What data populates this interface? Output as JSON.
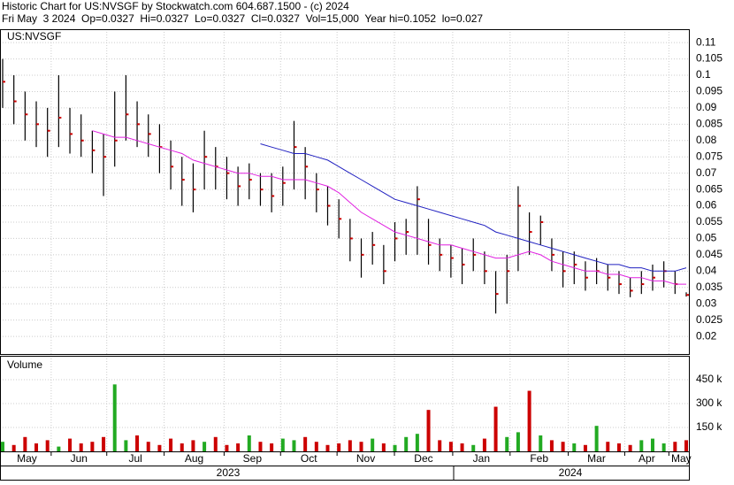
{
  "header": {
    "line1": "Historic Chart for US:NVSGF by Stockwatch.com 604.687.1500 - (c) 2024",
    "line2": "Fri May  3 2024  Op=0.0327  Hi=0.0327  Lo=0.0327  Cl=0.0327  Vol=15,000  Year hi=0.1052  lo=0.027"
  },
  "chart_data": [
    {
      "type": "ohlc",
      "label": "US:NVSGF",
      "bar_color": "#000000",
      "close_color": "#cc0000",
      "grid": true,
      "high": [
        0.105,
        0.1,
        0.095,
        0.092,
        0.09,
        0.1,
        0.09,
        0.088,
        0.083,
        0.082,
        0.095,
        0.1,
        0.092,
        0.088,
        0.085,
        0.08,
        0.075,
        0.073,
        0.083,
        0.078,
        0.075,
        0.072,
        0.073,
        0.07,
        0.07,
        0.072,
        0.086,
        0.078,
        0.07,
        0.066,
        0.062,
        0.056,
        0.05,
        0.052,
        0.048,
        0.055,
        0.056,
        0.066,
        0.056,
        0.05,
        0.048,
        0.047,
        0.05,
        0.046,
        0.04,
        0.045,
        0.066,
        0.058,
        0.057,
        0.05,
        0.046,
        0.046,
        0.043,
        0.044,
        0.042,
        0.04,
        0.038,
        0.04,
        0.042,
        0.043,
        0.04,
        0.0335
      ],
      "low": [
        0.09,
        0.085,
        0.08,
        0.078,
        0.075,
        0.078,
        0.076,
        0.075,
        0.07,
        0.063,
        0.072,
        0.08,
        0.078,
        0.075,
        0.07,
        0.065,
        0.06,
        0.058,
        0.065,
        0.065,
        0.062,
        0.06,
        0.062,
        0.06,
        0.058,
        0.06,
        0.065,
        0.062,
        0.058,
        0.054,
        0.05,
        0.043,
        0.038,
        0.042,
        0.036,
        0.043,
        0.045,
        0.045,
        0.042,
        0.04,
        0.038,
        0.036,
        0.04,
        0.036,
        0.027,
        0.03,
        0.04,
        0.045,
        0.048,
        0.04,
        0.035,
        0.036,
        0.034,
        0.036,
        0.034,
        0.033,
        0.032,
        0.033,
        0.034,
        0.035,
        0.033,
        0.0322
      ],
      "close": [
        0.098,
        0.092,
        0.088,
        0.085,
        0.083,
        0.087,
        0.082,
        0.08,
        0.077,
        0.075,
        0.08,
        0.088,
        0.085,
        0.082,
        0.078,
        0.072,
        0.068,
        0.065,
        0.075,
        0.072,
        0.07,
        0.066,
        0.068,
        0.065,
        0.063,
        0.067,
        0.078,
        0.072,
        0.065,
        0.06,
        0.056,
        0.05,
        0.045,
        0.048,
        0.04,
        0.05,
        0.052,
        0.062,
        0.048,
        0.045,
        0.044,
        0.042,
        0.045,
        0.04,
        0.033,
        0.04,
        0.06,
        0.052,
        0.055,
        0.045,
        0.04,
        0.042,
        0.038,
        0.04,
        0.038,
        0.036,
        0.034,
        0.036,
        0.038,
        0.04,
        0.036,
        0.0327
      ],
      "series": [
        {
          "color": "#e020e0",
          "values": [
            null,
            null,
            null,
            null,
            null,
            null,
            null,
            null,
            0.083,
            0.082,
            0.081,
            0.081,
            0.08,
            0.079,
            0.078,
            0.077,
            0.076,
            0.074,
            0.073,
            0.072,
            0.071,
            0.07,
            0.07,
            0.069,
            0.069,
            0.068,
            0.068,
            0.068,
            0.067,
            0.066,
            0.064,
            0.061,
            0.058,
            0.056,
            0.054,
            0.052,
            0.051,
            0.05,
            0.049,
            0.048,
            0.048,
            0.047,
            0.046,
            0.045,
            0.044,
            0.044,
            0.045,
            0.046,
            0.045,
            0.043,
            0.042,
            0.041,
            0.04,
            0.04,
            0.039,
            0.039,
            0.038,
            0.038,
            0.037,
            0.037,
            0.036,
            0.036
          ]
        },
        {
          "color": "#2020c0",
          "values": [
            null,
            null,
            null,
            null,
            null,
            null,
            null,
            null,
            null,
            null,
            null,
            null,
            null,
            null,
            null,
            null,
            null,
            null,
            null,
            null,
            null,
            null,
            null,
            0.079,
            0.078,
            0.077,
            0.076,
            0.076,
            0.075,
            0.074,
            0.072,
            0.07,
            0.068,
            0.066,
            0.064,
            0.062,
            0.061,
            0.06,
            0.059,
            0.058,
            0.057,
            0.056,
            0.055,
            0.054,
            0.052,
            0.051,
            0.05,
            0.049,
            0.048,
            0.047,
            0.046,
            0.045,
            0.044,
            0.043,
            0.042,
            0.042,
            0.041,
            0.041,
            0.04,
            0.04,
            0.04,
            0.041
          ]
        }
      ],
      "xlim": [
        0,
        61
      ],
      "xticks": [
        {
          "value": 0,
          "label": "May"
        },
        {
          "value": 4.33,
          "label": "Jun"
        },
        {
          "value": 9.29,
          "label": "Jul"
        },
        {
          "value": 14.41,
          "label": "Aug"
        },
        {
          "value": 19.76,
          "label": "Sep"
        },
        {
          "value": 24.8,
          "label": "Oct"
        },
        {
          "value": 29.84,
          "label": "Nov"
        },
        {
          "value": 34.96,
          "label": "Dec"
        },
        {
          "value": 40.16,
          "label": "Jan"
        },
        {
          "value": 45.28,
          "label": "Feb"
        },
        {
          "value": 50.47,
          "label": "Mar"
        },
        {
          "value": 55.51,
          "label": "Apr"
        },
        {
          "value": 59.45,
          "label": "May"
        }
      ],
      "years": [
        "2023",
        "2024"
      ],
      "ylim": [
        0.0146,
        0.1141
      ],
      "yticks": [
        0.02,
        0.025,
        0.03,
        0.035,
        0.04,
        0.045,
        0.05,
        0.055,
        0.06,
        0.065,
        0.07,
        0.075,
        0.08,
        0.085,
        0.09,
        0.095,
        0.1,
        0.105,
        0.11
      ]
    },
    {
      "type": "bar",
      "title": "Volume",
      "up_color": "#22aa22",
      "down_color": "#cc0000",
      "grid": true,
      "values": [
        60000,
        40000,
        90000,
        50000,
        70000,
        30000,
        80000,
        50000,
        60000,
        90000,
        420000,
        70000,
        100000,
        60000,
        40000,
        80000,
        50000,
        70000,
        60000,
        90000,
        40000,
        50000,
        100000,
        60000,
        50000,
        80000,
        70000,
        90000,
        60000,
        40000,
        50000,
        70000,
        60000,
        80000,
        50000,
        40000,
        90000,
        110000,
        260000,
        70000,
        60000,
        50000,
        40000,
        80000,
        280000,
        90000,
        120000,
        380000,
        100000,
        70000,
        60000,
        50000,
        40000,
        160000,
        60000,
        50000,
        40000,
        70000,
        80000,
        50000,
        60000,
        70000
      ],
      "ylim": [
        0,
        594000
      ],
      "yticks": [
        {
          "value": 150000,
          "label": "150 k"
        },
        {
          "value": 300000,
          "label": "300 k"
        },
        {
          "value": 450000,
          "label": "450 k"
        }
      ]
    }
  ]
}
